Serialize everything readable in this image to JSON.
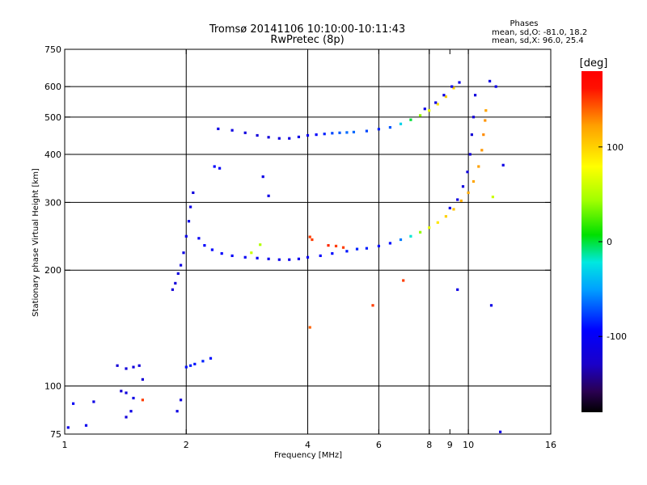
{
  "header": {
    "title_line1": "Tromsø 20141106 10:10:00-10:11:43",
    "title_line2": "RwPretec (8p)",
    "phase_title": "Phases",
    "phase_line1": "mean, sd,O: -81.0, 18.2",
    "phase_line2": "mean, sd,X:  96.0, 25.4"
  },
  "chart_data": {
    "type": "scatter",
    "xlabel": "Frequency [MHz]",
    "ylabel": "Stationary phase Virtual Height [km]",
    "xscale": "log",
    "yscale": "log",
    "xlim": [
      1,
      16
    ],
    "ylim": [
      75,
      750
    ],
    "xticks": [
      1,
      2,
      4,
      6,
      8,
      9,
      10,
      16
    ],
    "xtick_labels": [
      "1",
      "2",
      "4",
      "6",
      "8",
      "9",
      "10",
      "16"
    ],
    "yticks": [
      75,
      100,
      200,
      300,
      400,
      500,
      600,
      750
    ],
    "ytick_labels": [
      "75",
      "100",
      "200",
      "300",
      "400",
      "500",
      "600",
      "750"
    ],
    "x_gridlines": [
      2,
      4,
      6,
      8,
      10
    ],
    "y_gridlines": [
      100,
      200,
      300,
      400,
      500,
      600
    ],
    "grid": true,
    "colorbar": {
      "label": "[deg]",
      "range": [
        -180,
        180
      ],
      "ticks": [
        -100,
        0,
        100
      ],
      "tick_labels": [
        "-100",
        "0",
        "100"
      ]
    },
    "series": [
      {
        "points": [
          [
            1.02,
            78,
            -110
          ],
          [
            1.13,
            79,
            -105
          ],
          [
            1.05,
            90,
            -100
          ],
          [
            1.18,
            91,
            -110
          ],
          [
            1.35,
            113,
            -120
          ],
          [
            1.42,
            111,
            -118
          ],
          [
            1.48,
            112,
            -116
          ],
          [
            1.53,
            113,
            -118
          ],
          [
            1.38,
            97,
            -122
          ],
          [
            1.42,
            96,
            -115
          ],
          [
            1.48,
            93,
            -110
          ],
          [
            1.56,
            104,
            -120
          ],
          [
            1.42,
            83,
            -118
          ],
          [
            1.46,
            86,
            -110
          ],
          [
            1.94,
            92,
            -115
          ],
          [
            1.9,
            86,
            -112
          ],
          [
            1.85,
            178,
            -120
          ],
          [
            1.88,
            185,
            -118
          ],
          [
            1.91,
            196,
            -115
          ],
          [
            1.94,
            206,
            -112
          ],
          [
            1.97,
            222,
            -110
          ],
          [
            2.0,
            245,
            -108
          ],
          [
            2.03,
            268,
            -106
          ],
          [
            2.05,
            292,
            -110
          ],
          [
            2.08,
            318,
            -115
          ],
          [
            2.15,
            242,
            -100
          ],
          [
            2.22,
            232,
            -95
          ],
          [
            2.32,
            226,
            -95
          ],
          [
            2.45,
            221,
            -95
          ],
          [
            2.6,
            218,
            -98
          ],
          [
            2.8,
            216,
            -100
          ],
          [
            3.0,
            215,
            -102
          ],
          [
            3.2,
            214,
            -105
          ],
          [
            3.4,
            213,
            -106
          ],
          [
            3.6,
            213,
            -106
          ],
          [
            3.8,
            214,
            -105
          ],
          [
            4.0,
            216,
            -100
          ],
          [
            4.3,
            218,
            -95
          ],
          [
            4.6,
            221,
            -92
          ],
          [
            5.0,
            224,
            -88
          ],
          [
            5.3,
            227,
            -85
          ],
          [
            5.6,
            228,
            -86
          ],
          [
            6.0,
            231,
            -90
          ],
          [
            6.4,
            235,
            -90
          ],
          [
            6.8,
            240,
            -60
          ],
          [
            7.2,
            245,
            -20
          ],
          [
            7.6,
            251,
            40
          ],
          [
            8.0,
            258,
            70
          ],
          [
            8.4,
            266,
            90
          ],
          [
            8.8,
            276,
            100
          ],
          [
            9.2,
            288,
            108
          ],
          [
            9.6,
            303,
            115
          ],
          [
            10.0,
            318,
            118
          ],
          [
            10.3,
            340,
            120
          ],
          [
            10.6,
            372,
            122
          ],
          [
            10.8,
            410,
            125
          ],
          [
            10.9,
            450,
            128
          ],
          [
            11.0,
            490,
            126
          ],
          [
            11.05,
            520,
            120
          ],
          [
            9.0,
            290,
            -110
          ],
          [
            9.4,
            305,
            -112
          ],
          [
            9.7,
            330,
            -114
          ],
          [
            9.95,
            360,
            -116
          ],
          [
            10.1,
            400,
            -118
          ],
          [
            10.2,
            450,
            -120
          ],
          [
            10.3,
            500,
            -120
          ],
          [
            10.4,
            570,
            -115
          ],
          [
            2.4,
            466,
            -110
          ],
          [
            2.6,
            462,
            -112
          ],
          [
            2.8,
            455,
            -115
          ],
          [
            3.0,
            448,
            -118
          ],
          [
            3.2,
            443,
            -118
          ],
          [
            3.4,
            440,
            -116
          ],
          [
            3.6,
            440,
            -114
          ],
          [
            3.8,
            444,
            -110
          ],
          [
            4.0,
            448,
            -105
          ],
          [
            4.2,
            450,
            -95
          ],
          [
            4.4,
            452,
            -85
          ],
          [
            4.6,
            454,
            -75
          ],
          [
            4.8,
            455,
            -70
          ],
          [
            5.0,
            456,
            -65
          ],
          [
            5.2,
            457,
            -65
          ],
          [
            5.6,
            460,
            -75
          ],
          [
            6.0,
            465,
            -85
          ],
          [
            6.4,
            470,
            -70
          ],
          [
            6.8,
            480,
            -30
          ],
          [
            7.2,
            492,
            0
          ],
          [
            7.6,
            505,
            40
          ],
          [
            8.0,
            520,
            70
          ],
          [
            8.4,
            540,
            90
          ],
          [
            8.8,
            565,
            100
          ],
          [
            9.2,
            595,
            100
          ],
          [
            9.5,
            615,
            -110
          ],
          [
            7.8,
            525,
            -112
          ],
          [
            8.3,
            545,
            -114
          ],
          [
            8.7,
            570,
            -112
          ],
          [
            9.1,
            600,
            -110
          ],
          [
            2.0,
            112,
            -90
          ],
          [
            2.05,
            113,
            -85
          ],
          [
            2.1,
            114,
            -88
          ],
          [
            2.2,
            116,
            -85
          ],
          [
            2.3,
            118,
            -90
          ],
          [
            2.35,
            372,
            -95
          ],
          [
            2.42,
            368,
            -100
          ],
          [
            3.1,
            350,
            -110
          ],
          [
            3.2,
            312,
            -110
          ],
          [
            2.9,
            222,
            60
          ],
          [
            3.05,
            233,
            50
          ],
          [
            4.05,
            244,
            150
          ],
          [
            4.1,
            240,
            150
          ],
          [
            4.5,
            232,
            155
          ],
          [
            4.7,
            231,
            150
          ],
          [
            4.9,
            229,
            150
          ],
          [
            6.9,
            188,
            150
          ],
          [
            5.8,
            162,
            150
          ],
          [
            9.4,
            178,
            -110
          ],
          [
            11.4,
            162,
            -110
          ],
          [
            11.7,
            600,
            -110
          ],
          [
            11.3,
            620,
            -110
          ],
          [
            12.2,
            375,
            -110
          ],
          [
            11.5,
            310,
            60
          ],
          [
            4.05,
            142,
            140
          ],
          [
            12.0,
            76,
            -110
          ],
          [
            1.56,
            92,
            150
          ]
        ]
      }
    ]
  }
}
